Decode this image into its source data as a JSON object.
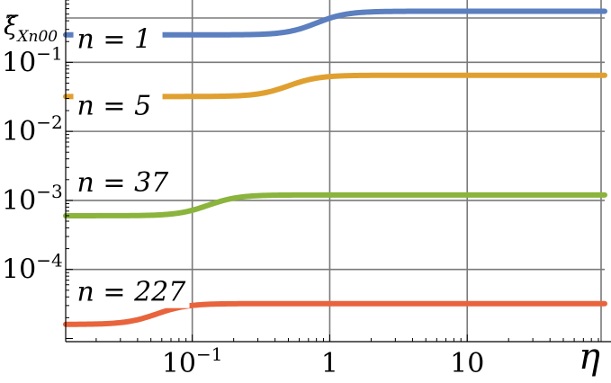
{
  "chart_data": {
    "type": "line",
    "title": "",
    "xlabel": "η",
    "ylabel": "ξ̃",
    "ylabel_sub": "Xn00",
    "x_scale": "log",
    "y_scale": "log",
    "xlim": [
      0.012,
      100
    ],
    "ylim": [
      9e-06,
      0.8
    ],
    "grid": true,
    "x_ticks": [
      {
        "value": 0.1,
        "label": "10",
        "exp": "−1"
      },
      {
        "value": 1,
        "label": "1",
        "exp": ""
      },
      {
        "value": 10,
        "label": "10",
        "exp": ""
      }
    ],
    "y_ticks": [
      {
        "value": 0.1,
        "label": "10",
        "exp": "−1"
      },
      {
        "value": 0.01,
        "label": "10",
        "exp": "−2"
      },
      {
        "value": 0.001,
        "label": "10",
        "exp": "−3"
      },
      {
        "value": 0.0001,
        "label": "10",
        "exp": "−4"
      }
    ],
    "series": [
      {
        "name": "n = 1",
        "color": "#5b7fbf",
        "low": 0.25,
        "high": 0.55,
        "x_mid": 0.8
      },
      {
        "name": "n = 5",
        "color": "#e0a030",
        "low": 0.032,
        "high": 0.065,
        "x_mid": 0.5
      },
      {
        "name": "n = 37",
        "color": "#8ab43c",
        "low": 0.0006,
        "high": 0.0012,
        "x_mid": 0.13
      },
      {
        "name": "n = 227",
        "color": "#e8643c",
        "low": 1.6e-05,
        "high": 3.2e-05,
        "x_mid": 0.055
      }
    ],
    "annotations": [
      {
        "text": "n = 1",
        "x": 0.0145,
        "y": 0.16
      },
      {
        "text": "n = 5",
        "x": 0.0145,
        "y": 0.0175
      },
      {
        "text": "n = 37",
        "x": 0.0145,
        "y": 0.00135
      },
      {
        "text": "n = 227",
        "x": 0.0145,
        "y": 3.5e-05
      }
    ]
  }
}
